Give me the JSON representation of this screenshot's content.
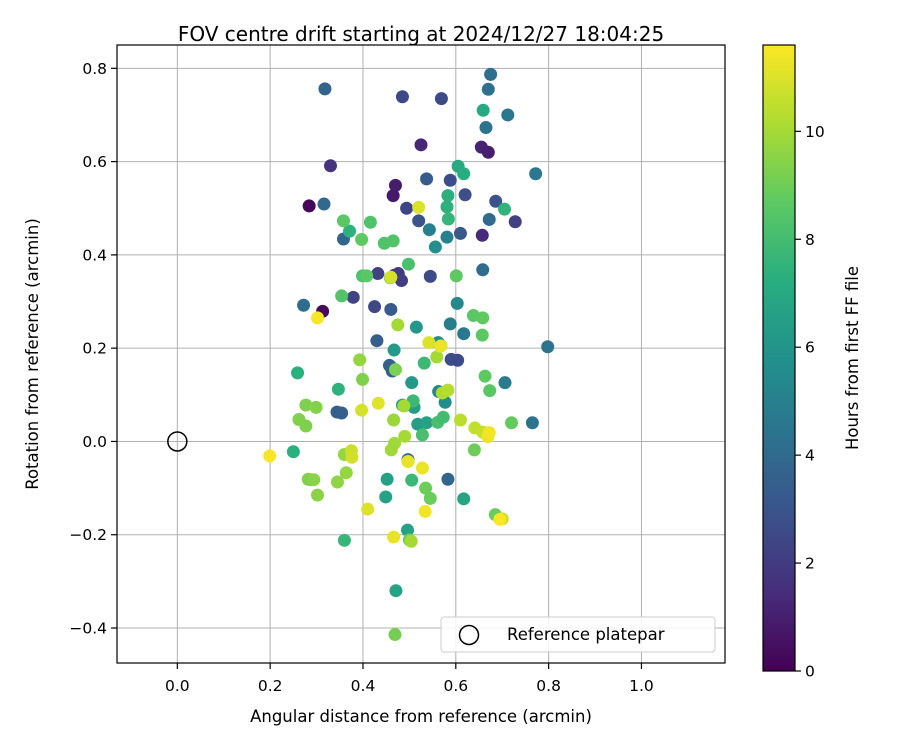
{
  "chart_data": {
    "type": "scatter",
    "title": "FOV centre drift starting at 2024/12/27 18:04:25",
    "xlabel": "Angular distance from reference (arcmin)",
    "ylabel": "Rotation from reference (arcmin)",
    "xlim": [
      -0.13,
      1.18
    ],
    "ylim": [
      -0.475,
      0.85
    ],
    "xticks": [
      0.0,
      0.2,
      0.4,
      0.6,
      0.8,
      1.0
    ],
    "xtick_labels": [
      "0.0",
      "0.2",
      "0.4",
      "0.6",
      "0.8",
      "1.0"
    ],
    "yticks": [
      -0.4,
      -0.2,
      0.0,
      0.2,
      0.4,
      0.6,
      0.8
    ],
    "ytick_labels": [
      "−0.4",
      "−0.2",
      "0.0",
      "0.2",
      "0.4",
      "0.6",
      "0.8"
    ],
    "grid": true,
    "colorbar": {
      "label": "Hours from first FF file",
      "range": [
        0,
        11.6
      ],
      "ticks": [
        0,
        2,
        4,
        6,
        8,
        10
      ],
      "tick_labels": [
        "0",
        "2",
        "4",
        "6",
        "8",
        "10"
      ],
      "colormap": "viridis"
    },
    "reference": {
      "name": "Reference platepar",
      "x": 0.0,
      "y": 0.0
    },
    "legend": {
      "position": "lower-right",
      "entries": [
        "Reference platepar"
      ]
    },
    "points": [
      {
        "x": 0.284,
        "y": 0.505,
        "c": 0.2
      },
      {
        "x": 0.313,
        "y": 0.279,
        "c": 0.3
      },
      {
        "x": 0.465,
        "y": 0.527,
        "c": 0.8
      },
      {
        "x": 0.47,
        "y": 0.549,
        "c": 0.9
      },
      {
        "x": 0.525,
        "y": 0.636,
        "c": 1.3
      },
      {
        "x": 0.655,
        "y": 0.631,
        "c": 1.2
      },
      {
        "x": 0.67,
        "y": 0.62,
        "c": 1.0
      },
      {
        "x": 0.657,
        "y": 0.442,
        "c": 1.4
      },
      {
        "x": 0.33,
        "y": 0.591,
        "c": 1.7
      },
      {
        "x": 0.467,
        "y": 0.356,
        "c": 1.8
      },
      {
        "x": 0.476,
        "y": 0.36,
        "c": 2.0
      },
      {
        "x": 0.432,
        "y": 0.36,
        "c": 2.2
      },
      {
        "x": 0.483,
        "y": 0.345,
        "c": 2.1
      },
      {
        "x": 0.379,
        "y": 0.309,
        "c": 2.3
      },
      {
        "x": 0.425,
        "y": 0.289,
        "c": 2.5
      },
      {
        "x": 0.494,
        "y": 0.5,
        "c": 2.4
      },
      {
        "x": 0.545,
        "y": 0.354,
        "c": 2.6
      },
      {
        "x": 0.59,
        "y": 0.176,
        "c": 2.7
      },
      {
        "x": 0.604,
        "y": 0.174,
        "c": 2.6
      },
      {
        "x": 0.728,
        "y": 0.471,
        "c": 2.2
      },
      {
        "x": 0.485,
        "y": 0.739,
        "c": 2.6
      },
      {
        "x": 0.569,
        "y": 0.735,
        "c": 2.6
      },
      {
        "x": 0.588,
        "y": 0.56,
        "c": 2.7
      },
      {
        "x": 0.62,
        "y": 0.529,
        "c": 2.8
      },
      {
        "x": 0.686,
        "y": 0.515,
        "c": 3.0
      },
      {
        "x": 0.52,
        "y": 0.473,
        "c": 3.0
      },
      {
        "x": 0.61,
        "y": 0.446,
        "c": 3.2
      },
      {
        "x": 0.537,
        "y": 0.563,
        "c": 3.3
      },
      {
        "x": 0.46,
        "y": 0.283,
        "c": 3.3
      },
      {
        "x": 0.46,
        "y": 0.16,
        "c": 3.4
      },
      {
        "x": 0.43,
        "y": 0.216,
        "c": 3.4
      },
      {
        "x": 0.457,
        "y": 0.163,
        "c": 3.5
      },
      {
        "x": 0.463,
        "y": 0.151,
        "c": 3.6
      },
      {
        "x": 0.344,
        "y": 0.063,
        "c": 3.5
      },
      {
        "x": 0.354,
        "y": 0.061,
        "c": 3.5
      },
      {
        "x": 0.318,
        "y": 0.756,
        "c": 3.7
      },
      {
        "x": 0.358,
        "y": 0.434,
        "c": 3.8
      },
      {
        "x": 0.316,
        "y": 0.509,
        "c": 3.9
      },
      {
        "x": 0.272,
        "y": 0.292,
        "c": 4.1
      },
      {
        "x": 0.497,
        "y": -0.039,
        "c": 3.8
      },
      {
        "x": 0.583,
        "y": -0.081,
        "c": 3.8
      },
      {
        "x": 0.672,
        "y": 0.476,
        "c": 4.0
      },
      {
        "x": 0.658,
        "y": 0.368,
        "c": 4.1
      },
      {
        "x": 0.675,
        "y": 0.787,
        "c": 4.2
      },
      {
        "x": 0.67,
        "y": 0.755,
        "c": 4.3
      },
      {
        "x": 0.665,
        "y": 0.673,
        "c": 4.4
      },
      {
        "x": 0.712,
        "y": 0.7,
        "c": 4.6
      },
      {
        "x": 0.772,
        "y": 0.574,
        "c": 4.6
      },
      {
        "x": 0.798,
        "y": 0.203,
        "c": 4.4
      },
      {
        "x": 0.765,
        "y": 0.04,
        "c": 4.4
      },
      {
        "x": 0.706,
        "y": 0.126,
        "c": 4.8
      },
      {
        "x": 0.617,
        "y": 0.231,
        "c": 4.7
      },
      {
        "x": 0.588,
        "y": 0.252,
        "c": 4.9
      },
      {
        "x": 0.543,
        "y": 0.454,
        "c": 5.0
      },
      {
        "x": 0.581,
        "y": 0.438,
        "c": 5.0
      },
      {
        "x": 0.603,
        "y": 0.296,
        "c": 5.4
      },
      {
        "x": 0.563,
        "y": 0.107,
        "c": 5.4
      },
      {
        "x": 0.577,
        "y": 0.084,
        "c": 5.6
      },
      {
        "x": 0.556,
        "y": 0.417,
        "c": 5.7
      },
      {
        "x": 0.562,
        "y": 0.212,
        "c": 5.6
      },
      {
        "x": 0.515,
        "y": 0.245,
        "c": 6.1
      },
      {
        "x": 0.505,
        "y": 0.126,
        "c": 6.2
      },
      {
        "x": 0.467,
        "y": 0.196,
        "c": 6.3
      },
      {
        "x": 0.485,
        "y": 0.078,
        "c": 6.4
      },
      {
        "x": 0.51,
        "y": 0.073,
        "c": 6.5
      },
      {
        "x": 0.518,
        "y": 0.037,
        "c": 6.5
      },
      {
        "x": 0.537,
        "y": 0.04,
        "c": 6.6
      },
      {
        "x": 0.452,
        "y": -0.081,
        "c": 6.6
      },
      {
        "x": 0.449,
        "y": -0.119,
        "c": 6.6
      },
      {
        "x": 0.471,
        "y": -0.32,
        "c": 6.7
      },
      {
        "x": 0.496,
        "y": -0.19,
        "c": 6.6
      },
      {
        "x": 0.617,
        "y": -0.123,
        "c": 6.8
      },
      {
        "x": 0.659,
        "y": 0.71,
        "c": 7.0
      },
      {
        "x": 0.605,
        "y": 0.59,
        "c": 7.0
      },
      {
        "x": 0.617,
        "y": 0.574,
        "c": 7.2
      },
      {
        "x": 0.583,
        "y": 0.527,
        "c": 7.3
      },
      {
        "x": 0.581,
        "y": 0.503,
        "c": 7.4
      },
      {
        "x": 0.705,
        "y": 0.498,
        "c": 7.5
      },
      {
        "x": 0.584,
        "y": 0.477,
        "c": 7.6
      },
      {
        "x": 0.371,
        "y": 0.451,
        "c": 7.4
      },
      {
        "x": 0.259,
        "y": 0.147,
        "c": 7.3
      },
      {
        "x": 0.25,
        "y": -0.022,
        "c": 7.3
      },
      {
        "x": 0.347,
        "y": 0.112,
        "c": 7.4
      },
      {
        "x": 0.36,
        "y": -0.212,
        "c": 7.7
      },
      {
        "x": 0.505,
        "y": -0.083,
        "c": 7.8
      },
      {
        "x": 0.508,
        "y": 0.087,
        "c": 7.8
      },
      {
        "x": 0.532,
        "y": 0.168,
        "c": 7.8
      },
      {
        "x": 0.561,
        "y": 0.041,
        "c": 8.1
      },
      {
        "x": 0.573,
        "y": 0.052,
        "c": 8.0
      },
      {
        "x": 0.528,
        "y": 0.014,
        "c": 8.1
      },
      {
        "x": 0.498,
        "y": 0.38,
        "c": 8.2
      },
      {
        "x": 0.446,
        "y": 0.425,
        "c": 8.3
      },
      {
        "x": 0.465,
        "y": 0.43,
        "c": 8.4
      },
      {
        "x": 0.416,
        "y": 0.47,
        "c": 8.3
      },
      {
        "x": 0.399,
        "y": 0.355,
        "c": 8.3
      },
      {
        "x": 0.354,
        "y": 0.312,
        "c": 8.4
      },
      {
        "x": 0.358,
        "y": 0.473,
        "c": 8.6
      },
      {
        "x": 0.397,
        "y": 0.433,
        "c": 8.7
      },
      {
        "x": 0.408,
        "y": 0.355,
        "c": 8.6
      },
      {
        "x": 0.459,
        "y": 0.351,
        "c": 8.7
      },
      {
        "x": 0.638,
        "y": 0.27,
        "c": 8.6
      },
      {
        "x": 0.658,
        "y": 0.265,
        "c": 8.7
      },
      {
        "x": 0.657,
        "y": 0.228,
        "c": 8.6
      },
      {
        "x": 0.663,
        "y": 0.14,
        "c": 8.7
      },
      {
        "x": 0.673,
        "y": 0.109,
        "c": 8.6
      },
      {
        "x": 0.601,
        "y": 0.355,
        "c": 8.7
      },
      {
        "x": 0.72,
        "y": 0.04,
        "c": 8.8
      },
      {
        "x": 0.685,
        "y": -0.157,
        "c": 8.9
      },
      {
        "x": 0.64,
        "y": -0.018,
        "c": 9.0
      },
      {
        "x": 0.545,
        "y": -0.122,
        "c": 8.9
      },
      {
        "x": 0.535,
        "y": -0.1,
        "c": 9.0
      },
      {
        "x": 0.5,
        "y": -0.211,
        "c": 9.0
      },
      {
        "x": 0.469,
        "y": -0.414,
        "c": 9.1
      },
      {
        "x": 0.47,
        "y": 0.154,
        "c": 9.2
      },
      {
        "x": 0.399,
        "y": 0.133,
        "c": 9.3
      },
      {
        "x": 0.277,
        "y": 0.078,
        "c": 9.3
      },
      {
        "x": 0.262,
        "y": 0.047,
        "c": 9.3
      },
      {
        "x": 0.277,
        "y": 0.033,
        "c": 9.3
      },
      {
        "x": 0.282,
        "y": -0.081,
        "c": 9.4
      },
      {
        "x": 0.287,
        "y": -0.082,
        "c": 9.3
      },
      {
        "x": 0.294,
        "y": -0.082,
        "c": 9.5
      },
      {
        "x": 0.299,
        "y": 0.073,
        "c": 9.4
      },
      {
        "x": 0.302,
        "y": -0.115,
        "c": 9.5
      },
      {
        "x": 0.345,
        "y": -0.087,
        "c": 9.6
      },
      {
        "x": 0.36,
        "y": -0.028,
        "c": 9.7
      },
      {
        "x": 0.364,
        "y": -0.067,
        "c": 9.7
      },
      {
        "x": 0.393,
        "y": 0.175,
        "c": 9.7
      },
      {
        "x": 0.461,
        "y": -0.018,
        "c": 9.9
      },
      {
        "x": 0.466,
        "y": 0.046,
        "c": 9.8
      },
      {
        "x": 0.468,
        "y": -0.004,
        "c": 9.9
      },
      {
        "x": 0.49,
        "y": 0.011,
        "c": 10.0
      },
      {
        "x": 0.488,
        "y": 0.076,
        "c": 10.0
      },
      {
        "x": 0.475,
        "y": 0.25,
        "c": 10.0
      },
      {
        "x": 0.504,
        "y": -0.214,
        "c": 10.0
      },
      {
        "x": 0.559,
        "y": 0.181,
        "c": 10.0
      },
      {
        "x": 0.568,
        "y": 0.205,
        "c": 10.1
      },
      {
        "x": 0.571,
        "y": 0.104,
        "c": 10.2
      },
      {
        "x": 0.583,
        "y": 0.11,
        "c": 10.3
      },
      {
        "x": 0.61,
        "y": 0.046,
        "c": 10.4
      },
      {
        "x": 0.641,
        "y": 0.029,
        "c": 10.5
      },
      {
        "x": 0.658,
        "y": 0.02,
        "c": 10.6
      },
      {
        "x": 0.7,
        "y": -0.166,
        "c": 10.6
      },
      {
        "x": 0.375,
        "y": -0.02,
        "c": 10.7
      },
      {
        "x": 0.376,
        "y": -0.034,
        "c": 10.8
      },
      {
        "x": 0.397,
        "y": 0.067,
        "c": 10.9
      },
      {
        "x": 0.41,
        "y": -0.145,
        "c": 11.0
      },
      {
        "x": 0.46,
        "y": 0.352,
        "c": 10.9
      },
      {
        "x": 0.542,
        "y": 0.212,
        "c": 11.0
      },
      {
        "x": 0.52,
        "y": 0.502,
        "c": 11.0
      },
      {
        "x": 0.433,
        "y": 0.082,
        "c": 11.1
      },
      {
        "x": 0.466,
        "y": -0.205,
        "c": 11.2
      },
      {
        "x": 0.497,
        "y": -0.043,
        "c": 11.2
      },
      {
        "x": 0.528,
        "y": -0.057,
        "c": 11.3
      },
      {
        "x": 0.534,
        "y": -0.15,
        "c": 11.4
      },
      {
        "x": 0.567,
        "y": 0.204,
        "c": 11.3
      },
      {
        "x": 0.669,
        "y": 0.01,
        "c": 11.3
      },
      {
        "x": 0.672,
        "y": 0.019,
        "c": 11.4
      },
      {
        "x": 0.302,
        "y": 0.265,
        "c": 11.5
      },
      {
        "x": 0.199,
        "y": -0.031,
        "c": 11.5
      },
      {
        "x": 0.695,
        "y": -0.167,
        "c": 11.6
      }
    ]
  }
}
